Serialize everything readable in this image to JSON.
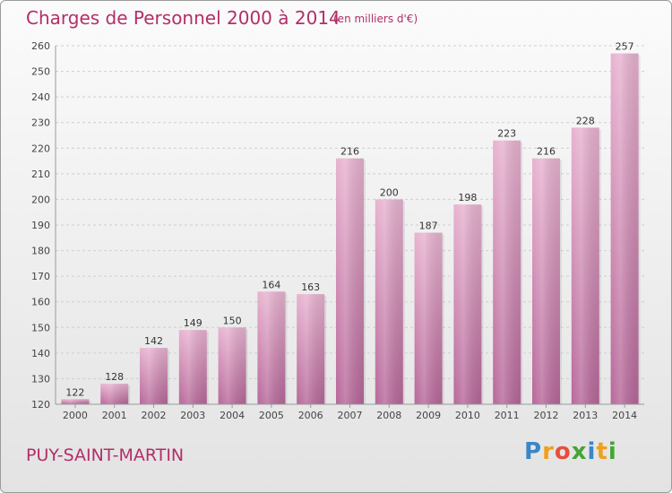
{
  "chart_data": {
    "type": "bar",
    "title": "Charges de Personnel 2000 à 2014",
    "subtitle": "(en milliers d'€)",
    "categories": [
      "2000",
      "2001",
      "2002",
      "2003",
      "2004",
      "2005",
      "2006",
      "2007",
      "2008",
      "2009",
      "2010",
      "2011",
      "2012",
      "2013",
      "2014"
    ],
    "values": [
      122,
      128,
      142,
      149,
      150,
      164,
      163,
      216,
      200,
      187,
      198,
      223,
      216,
      228,
      257
    ],
    "ylim": [
      120,
      260
    ],
    "yticks": [
      120,
      130,
      140,
      150,
      160,
      170,
      180,
      190,
      200,
      210,
      220,
      230,
      240,
      250,
      260
    ],
    "grid": true,
    "data_labels": true,
    "colors": {
      "bar_light": "#e8b3d0",
      "bar_dark": "#b7689a",
      "text": "#b32e6a"
    }
  },
  "footer": {
    "commune": "PUY-SAINT-MARTIN",
    "logo_text": "Proxiti"
  }
}
